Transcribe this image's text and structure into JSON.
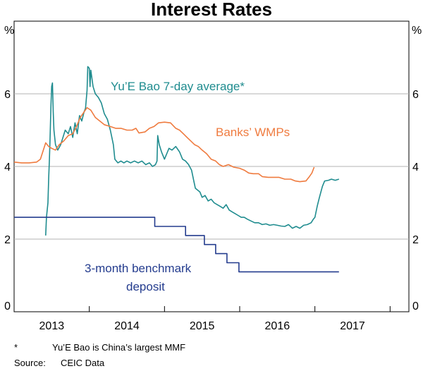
{
  "chart_data": {
    "type": "line",
    "title": "Interest Rates",
    "y_unit_left": "%",
    "y_unit_right": "%",
    "ylim": [
      0,
      8
    ],
    "yticks": [
      0,
      2,
      4,
      6
    ],
    "xlim": [
      2012.5,
      2017.75
    ],
    "xtick_labels": [
      "2013",
      "2014",
      "2015",
      "2016",
      "2017"
    ],
    "xtick_label_positions": [
      2013.0,
      2014.0,
      2015.0,
      2016.0,
      2017.0
    ],
    "year_boundaries": [
      2013.5,
      2014.5,
      2015.5,
      2016.5,
      2017.5
    ],
    "grid": "horizontal",
    "series": [
      {
        "name": "Yu'E Bao 7-day average*",
        "color": "#1f8c8f",
        "points": [
          [
            2012.92,
            2.1
          ],
          [
            2012.93,
            2.6
          ],
          [
            2012.95,
            3.0
          ],
          [
            2012.96,
            3.7
          ],
          [
            2012.97,
            4.2
          ],
          [
            2012.98,
            4.9
          ],
          [
            2012.99,
            5.7
          ],
          [
            2013.0,
            6.2
          ],
          [
            2013.01,
            6.3
          ],
          [
            2013.02,
            5.5
          ],
          [
            2013.03,
            5.0
          ],
          [
            2013.05,
            4.6
          ],
          [
            2013.08,
            4.45
          ],
          [
            2013.12,
            4.6
          ],
          [
            2013.15,
            4.8
          ],
          [
            2013.18,
            5.0
          ],
          [
            2013.22,
            4.9
          ],
          [
            2013.25,
            5.1
          ],
          [
            2013.28,
            4.8
          ],
          [
            2013.31,
            5.2
          ],
          [
            2013.34,
            4.9
          ],
          [
            2013.37,
            5.4
          ],
          [
            2013.4,
            5.25
          ],
          [
            2013.43,
            5.5
          ],
          [
            2013.45,
            5.6
          ],
          [
            2013.47,
            6.1
          ],
          [
            2013.48,
            6.75
          ],
          [
            2013.5,
            6.7
          ],
          [
            2013.51,
            6.2
          ],
          [
            2013.52,
            6.65
          ],
          [
            2013.55,
            6.2
          ],
          [
            2013.58,
            6.0
          ],
          [
            2013.62,
            5.9
          ],
          [
            2013.66,
            5.75
          ],
          [
            2013.7,
            5.45
          ],
          [
            2013.74,
            5.3
          ],
          [
            2013.78,
            5.0
          ],
          [
            2013.82,
            4.6
          ],
          [
            2013.84,
            4.2
          ],
          [
            2013.88,
            4.1
          ],
          [
            2013.92,
            4.15
          ],
          [
            2013.96,
            4.1
          ],
          [
            2014.0,
            4.15
          ],
          [
            2014.05,
            4.1
          ],
          [
            2014.1,
            4.15
          ],
          [
            2014.15,
            4.1
          ],
          [
            2014.2,
            4.15
          ],
          [
            2014.25,
            4.05
          ],
          [
            2014.3,
            4.1
          ],
          [
            2014.34,
            4.0
          ],
          [
            2014.38,
            4.05
          ],
          [
            2014.4,
            4.15
          ],
          [
            2014.41,
            4.85
          ],
          [
            2014.43,
            4.6
          ],
          [
            2014.46,
            4.4
          ],
          [
            2014.5,
            4.2
          ],
          [
            2014.53,
            4.35
          ],
          [
            2014.56,
            4.5
          ],
          [
            2014.6,
            4.45
          ],
          [
            2014.65,
            4.55
          ],
          [
            2014.7,
            4.4
          ],
          [
            2014.74,
            4.2
          ],
          [
            2014.78,
            4.15
          ],
          [
            2014.82,
            4.05
          ],
          [
            2014.86,
            3.9
          ],
          [
            2014.89,
            3.6
          ],
          [
            2014.91,
            3.4
          ],
          [
            2014.94,
            3.35
          ],
          [
            2014.97,
            3.3
          ],
          [
            2015.0,
            3.15
          ],
          [
            2015.04,
            3.2
          ],
          [
            2015.08,
            3.05
          ],
          [
            2015.12,
            3.1
          ],
          [
            2015.16,
            3.0
          ],
          [
            2015.2,
            2.95
          ],
          [
            2015.24,
            2.9
          ],
          [
            2015.28,
            2.85
          ],
          [
            2015.32,
            2.95
          ],
          [
            2015.36,
            2.8
          ],
          [
            2015.4,
            2.75
          ],
          [
            2015.44,
            2.7
          ],
          [
            2015.48,
            2.65
          ],
          [
            2015.52,
            2.6
          ],
          [
            2015.56,
            2.6
          ],
          [
            2015.6,
            2.55
          ],
          [
            2015.65,
            2.5
          ],
          [
            2015.7,
            2.45
          ],
          [
            2015.75,
            2.45
          ],
          [
            2015.8,
            2.4
          ],
          [
            2015.85,
            2.42
          ],
          [
            2015.9,
            2.38
          ],
          [
            2015.95,
            2.4
          ],
          [
            2016.0,
            2.38
          ],
          [
            2016.05,
            2.36
          ],
          [
            2016.1,
            2.35
          ],
          [
            2016.15,
            2.4
          ],
          [
            2016.2,
            2.3
          ],
          [
            2016.25,
            2.35
          ],
          [
            2016.3,
            2.3
          ],
          [
            2016.35,
            2.38
          ],
          [
            2016.4,
            2.4
          ],
          [
            2016.45,
            2.45
          ],
          [
            2016.48,
            2.55
          ],
          [
            2016.5,
            2.6
          ],
          [
            2016.53,
            2.9
          ],
          [
            2016.56,
            3.15
          ],
          [
            2016.6,
            3.45
          ],
          [
            2016.63,
            3.6
          ],
          [
            2016.68,
            3.62
          ],
          [
            2016.72,
            3.65
          ],
          [
            2016.77,
            3.62
          ],
          [
            2016.82,
            3.65
          ]
        ]
      },
      {
        "name": "Banks' WMPs",
        "color": "#ef7b3f",
        "points": [
          [
            2012.5,
            4.12
          ],
          [
            2012.6,
            4.1
          ],
          [
            2012.7,
            4.1
          ],
          [
            2012.8,
            4.12
          ],
          [
            2012.85,
            4.2
          ],
          [
            2012.92,
            4.65
          ],
          [
            2012.96,
            4.55
          ],
          [
            2013.0,
            4.5
          ],
          [
            2013.05,
            4.45
          ],
          [
            2013.1,
            4.6
          ],
          [
            2013.16,
            4.7
          ],
          [
            2013.22,
            4.85
          ],
          [
            2013.28,
            4.9
          ],
          [
            2013.33,
            5.1
          ],
          [
            2013.38,
            5.35
          ],
          [
            2013.43,
            5.5
          ],
          [
            2013.47,
            5.62
          ],
          [
            2013.52,
            5.55
          ],
          [
            2013.58,
            5.35
          ],
          [
            2013.64,
            5.25
          ],
          [
            2013.7,
            5.15
          ],
          [
            2013.78,
            5.1
          ],
          [
            2013.85,
            5.05
          ],
          [
            2013.92,
            5.05
          ],
          [
            2014.0,
            5.0
          ],
          [
            2014.07,
            5.0
          ],
          [
            2014.12,
            5.05
          ],
          [
            2014.16,
            4.92
          ],
          [
            2014.24,
            4.95
          ],
          [
            2014.3,
            5.05
          ],
          [
            2014.36,
            5.1
          ],
          [
            2014.42,
            5.2
          ],
          [
            2014.5,
            5.22
          ],
          [
            2014.58,
            5.2
          ],
          [
            2014.65,
            5.05
          ],
          [
            2014.7,
            5.0
          ],
          [
            2014.75,
            4.9
          ],
          [
            2014.8,
            4.8
          ],
          [
            2014.85,
            4.7
          ],
          [
            2014.9,
            4.6
          ],
          [
            2014.95,
            4.55
          ],
          [
            2015.0,
            4.45
          ],
          [
            2015.06,
            4.35
          ],
          [
            2015.12,
            4.2
          ],
          [
            2015.18,
            4.15
          ],
          [
            2015.23,
            4.05
          ],
          [
            2015.28,
            4.0
          ],
          [
            2015.35,
            4.05
          ],
          [
            2015.42,
            3.98
          ],
          [
            2015.5,
            3.95
          ],
          [
            2015.56,
            3.9
          ],
          [
            2015.62,
            3.82
          ],
          [
            2015.68,
            3.8
          ],
          [
            2015.75,
            3.8
          ],
          [
            2015.8,
            3.72
          ],
          [
            2015.88,
            3.7
          ],
          [
            2015.95,
            3.7
          ],
          [
            2016.02,
            3.7
          ],
          [
            2016.1,
            3.65
          ],
          [
            2016.18,
            3.65
          ],
          [
            2016.24,
            3.6
          ],
          [
            2016.3,
            3.58
          ],
          [
            2016.38,
            3.6
          ],
          [
            2016.42,
            3.7
          ],
          [
            2016.46,
            3.82
          ],
          [
            2016.49,
            3.98
          ]
        ]
      },
      {
        "name": "3-month benchmark deposit",
        "color": "#243c8e",
        "step": true,
        "points": [
          [
            2012.5,
            2.6
          ],
          [
            2014.37,
            2.6
          ],
          [
            2014.37,
            2.35
          ],
          [
            2014.78,
            2.35
          ],
          [
            2014.78,
            2.1
          ],
          [
            2015.03,
            2.1
          ],
          [
            2015.03,
            1.85
          ],
          [
            2015.18,
            1.85
          ],
          [
            2015.18,
            1.6
          ],
          [
            2015.33,
            1.6
          ],
          [
            2015.33,
            1.35
          ],
          [
            2015.49,
            1.35
          ],
          [
            2015.49,
            1.1
          ],
          [
            2016.82,
            1.1
          ]
        ]
      }
    ],
    "annotations": [
      {
        "text": "Yu’E Bao 7-day average*",
        "series": 0
      },
      {
        "text": "Banks’ WMPs",
        "series": 1
      },
      {
        "text": "3-month benchmark",
        "series": 2
      },
      {
        "text": "deposit",
        "series": 2
      }
    ],
    "footnotes": {
      "note_marker": "*",
      "note_text": "Yu’E Bao is China’s largest MMF",
      "source_label": "Source:",
      "source_text": "CEIC Data"
    }
  }
}
